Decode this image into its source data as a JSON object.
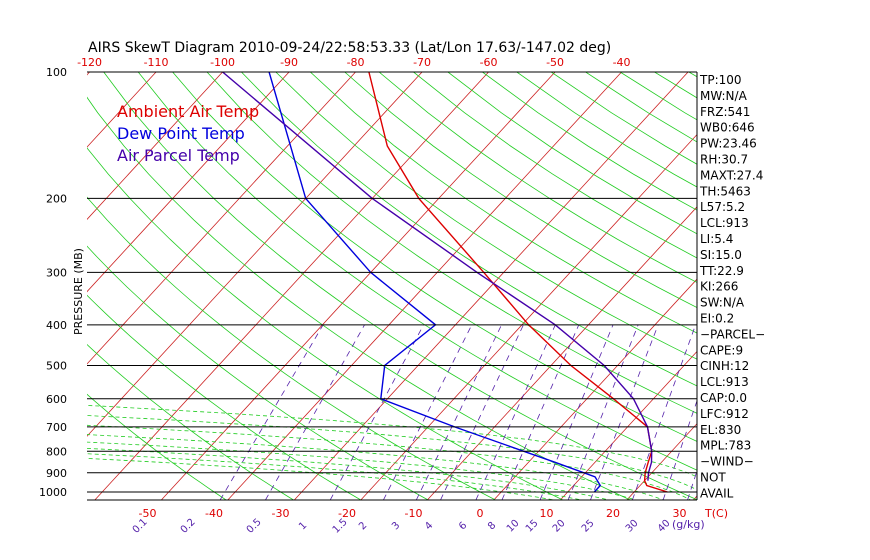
{
  "chart_data": {
    "type": "line",
    "title": "AIRS SkewT Diagram 2010-09-24/22:58:53.33 (Lat/Lon 17.63/-147.02 deg)",
    "ylabel": "PRESSURE (MB)",
    "xlabel_right": "T(C)",
    "mixing_label": "(g/kg)",
    "pressure_ticks": [
      100,
      200,
      300,
      400,
      500,
      600,
      700,
      800,
      900,
      1000
    ],
    "top_temp_ticks": [
      -120,
      -110,
      -100,
      -90,
      -80,
      -70,
      -60,
      -50,
      -40
    ],
    "bottom_temp_ticks": [
      -50,
      -40,
      -30,
      -20,
      -10,
      0,
      10,
      20,
      30
    ],
    "mixing_ratio_ticks": [
      "0.1",
      "0.2",
      "0.5",
      "1",
      "1.5",
      "2",
      "3",
      "4",
      "6",
      "8",
      "10",
      "15",
      "20",
      "25",
      "30",
      "40"
    ],
    "legend": [
      {
        "text": "Ambient Air Temp",
        "color": "#dd0000"
      },
      {
        "text": "Dew Point Temp",
        "color": "#0000dd"
      },
      {
        "text": "Air Parcel Temp",
        "color": "#4400aa"
      }
    ],
    "series": [
      {
        "name": "Ambient Air Temp",
        "color": "#dd0000",
        "points": [
          [
            1000,
            25
          ],
          [
            965,
            21
          ],
          [
            940,
            20
          ],
          [
            900,
            19
          ],
          [
            850,
            18
          ],
          [
            800,
            17
          ],
          [
            700,
            13
          ],
          [
            600,
            4
          ],
          [
            500,
            -7
          ],
          [
            400,
            -19
          ],
          [
            300,
            -33
          ],
          [
            200,
            -53
          ],
          [
            150,
            -65
          ],
          [
            100,
            -78
          ]
        ]
      },
      {
        "name": "Dew Point Temp",
        "color": "#0000dd",
        "points": [
          [
            1000,
            14
          ],
          [
            965,
            14
          ],
          [
            920,
            12
          ],
          [
            850,
            4
          ],
          [
            700,
            -16
          ],
          [
            600,
            -31
          ],
          [
            500,
            -35
          ],
          [
            400,
            -33
          ],
          [
            300,
            -50
          ],
          [
            200,
            -70
          ],
          [
            100,
            -93
          ]
        ]
      },
      {
        "name": "Air Parcel Temp",
        "color": "#4400aa",
        "points": [
          [
            940,
            20.5
          ],
          [
            900,
            19.5
          ],
          [
            850,
            18.5
          ],
          [
            800,
            17
          ],
          [
            700,
            13
          ],
          [
            600,
            7
          ],
          [
            500,
            -2
          ],
          [
            400,
            -15
          ],
          [
            300,
            -34
          ],
          [
            200,
            -60
          ],
          [
            100,
            -100
          ]
        ]
      }
    ]
  },
  "indices": [
    "TP:100",
    "MW:N/A",
    "FRZ:541",
    "WB0:646",
    "PW:23.46",
    "RH:30.7",
    "MAXT:27.4",
    "TH:5463",
    "L57:5.2",
    "LCL:913",
    "LI:5.4",
    "SI:15.0",
    "TT:22.9",
    "KI:266",
    "SW:N/A",
    "EI:0.2",
    "−PARCEL−",
    "CAPE:9",
    "CINH:12",
    "LCL:913",
    "CAP:0.0",
    "LFC:912",
    "EL:830",
    "MPL:783",
    "−WIND−",
    "NOT",
    "AVAIL"
  ]
}
